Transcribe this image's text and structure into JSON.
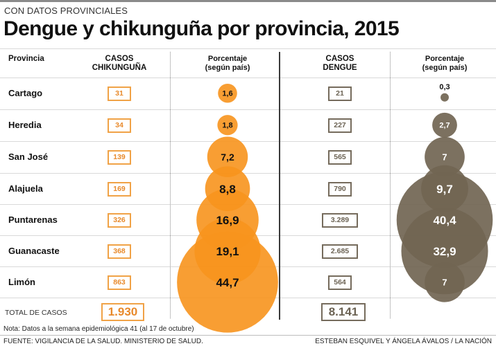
{
  "header": {
    "kicker": "CON DATOS PROVINCIALES",
    "title": "Dengue y chikunguña por provincia, 2015"
  },
  "columns": {
    "provincia": "Provincia",
    "casos_chik_1": "CASOS",
    "casos_chik_2": "CHIKUNGUÑA",
    "pct_chik_1": "Porcentaje",
    "pct_chik_2": "(según país)",
    "casos_den_1": "CASOS",
    "casos_den_2": "DENGUE",
    "pct_den_1": "Porcentaje",
    "pct_den_2": "(según país)"
  },
  "colors": {
    "chikungunya": "#f7941d",
    "chikungunya_text": "#e8892a",
    "dengue": "#716553",
    "dengue_text": "#6b6253"
  },
  "chart_data": {
    "type": "table",
    "title": "Dengue y chikunguña por provincia, 2015",
    "categories": [
      "Cartago",
      "Heredia",
      "San José",
      "Alajuela",
      "Puntarenas",
      "Guanacaste",
      "Limón"
    ],
    "series": [
      {
        "name": "CASOS CHIKUNGUÑA",
        "values": [
          31,
          34,
          139,
          169,
          326,
          368,
          863
        ],
        "labels": [
          "31",
          "34",
          "139",
          "169",
          "326",
          "368",
          "863"
        ]
      },
      {
        "name": "Porcentaje chikunguña (según país)",
        "values": [
          1.6,
          1.8,
          7.2,
          8.8,
          16.9,
          19.1,
          44.7
        ],
        "labels": [
          "1,6",
          "1,8",
          "7,2",
          "8,8",
          "16,9",
          "19,1",
          "44,7"
        ]
      },
      {
        "name": "CASOS DENGUE",
        "values": [
          21,
          227,
          565,
          790,
          3289,
          2685,
          564
        ],
        "labels": [
          "21",
          "227",
          "565",
          "790",
          "3.289",
          "2.685",
          "564"
        ]
      },
      {
        "name": "Porcentaje dengue (según país)",
        "values": [
          0.3,
          2.7,
          7,
          9.7,
          40.4,
          32.9,
          7
        ],
        "labels": [
          "0,3",
          "2,7",
          "7",
          "9,7",
          "40,4",
          "32,9",
          "7"
        ]
      }
    ],
    "totals": {
      "label": "TOTAL DE CASOS",
      "chikungunya": "1.930",
      "dengue": "8.141"
    }
  },
  "footer": {
    "note": "Nota: Datos a la semana epidemiológica 41 (al 17 de octubre)",
    "source": "FUENTE: VIGILANCIA DE LA SALUD. MINISTERIO DE SALUD.",
    "credit": "ESTEBAN ESQUIVEL Y ÁNGELA ÁVALOS  / LA NACIÓN"
  }
}
